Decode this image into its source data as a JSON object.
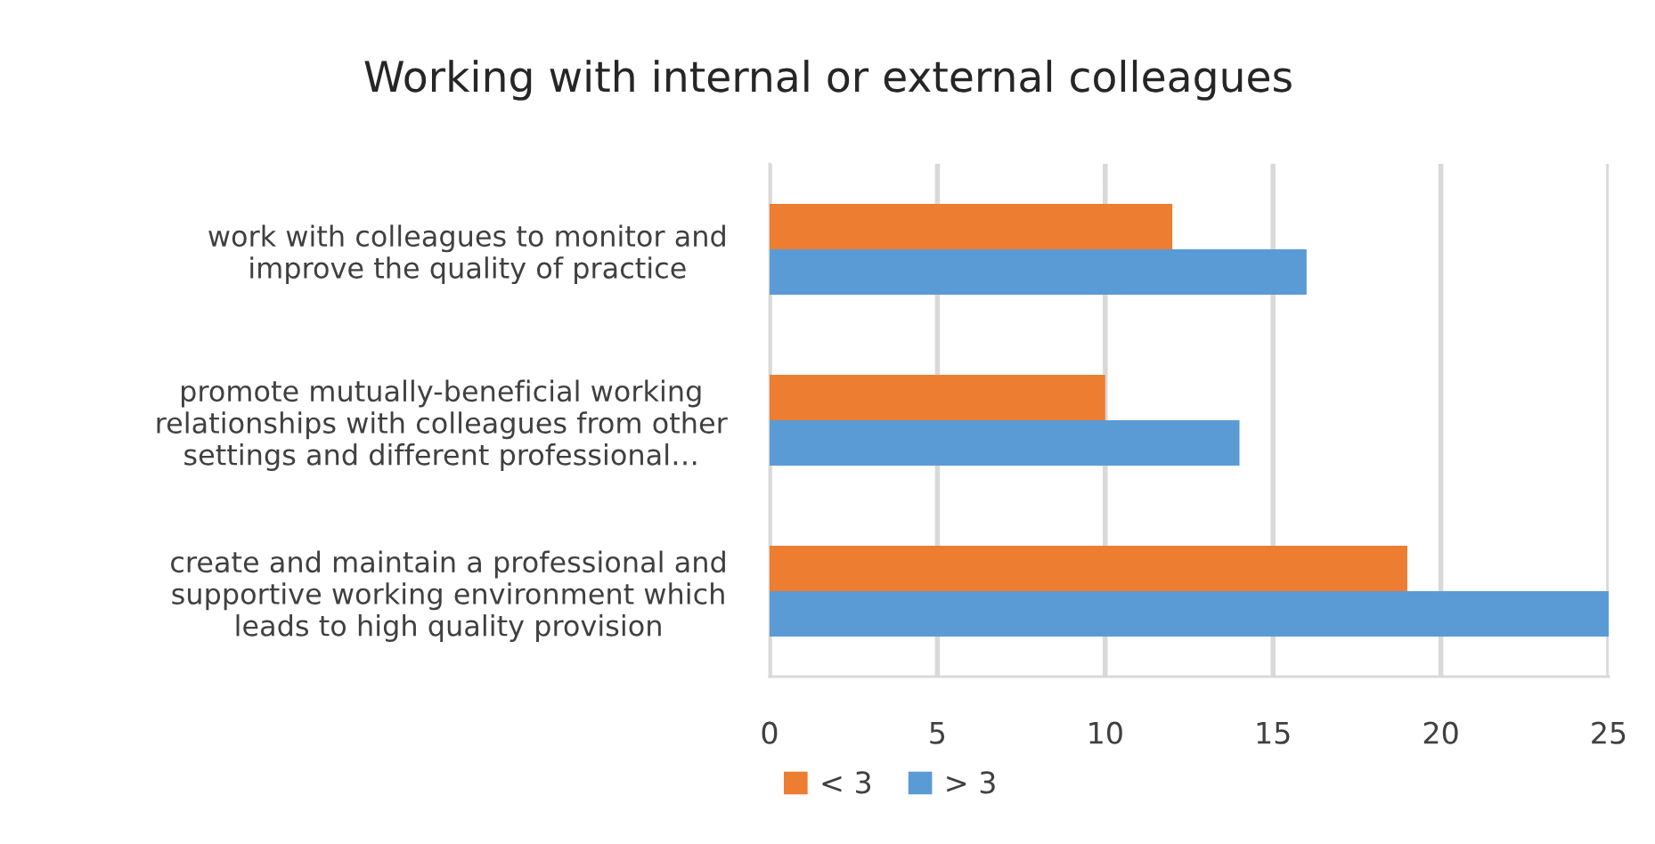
{
  "chart_data": {
    "type": "bar",
    "orientation": "horizontal",
    "title": "Working with internal or external colleagues",
    "categories": [
      "work with colleagues to monitor and\nimprove the quality of practice",
      "promote mutually-beneficial working\nrelationships with colleagues from other\nsettings and different professional…",
      "create and maintain a professional and\nsupportive working environment which\nleads to high quality provision"
    ],
    "series": [
      {
        "name": "< 3",
        "color": "#ed7d31",
        "values": [
          12,
          10,
          19
        ]
      },
      {
        "name": "> 3",
        "color": "#5b9bd5",
        "values": [
          16,
          14,
          25
        ]
      }
    ],
    "xlim": [
      0,
      25
    ],
    "xticks": [
      0,
      5,
      10,
      15,
      20,
      25
    ],
    "grid": "x",
    "legend": "bottom left"
  }
}
